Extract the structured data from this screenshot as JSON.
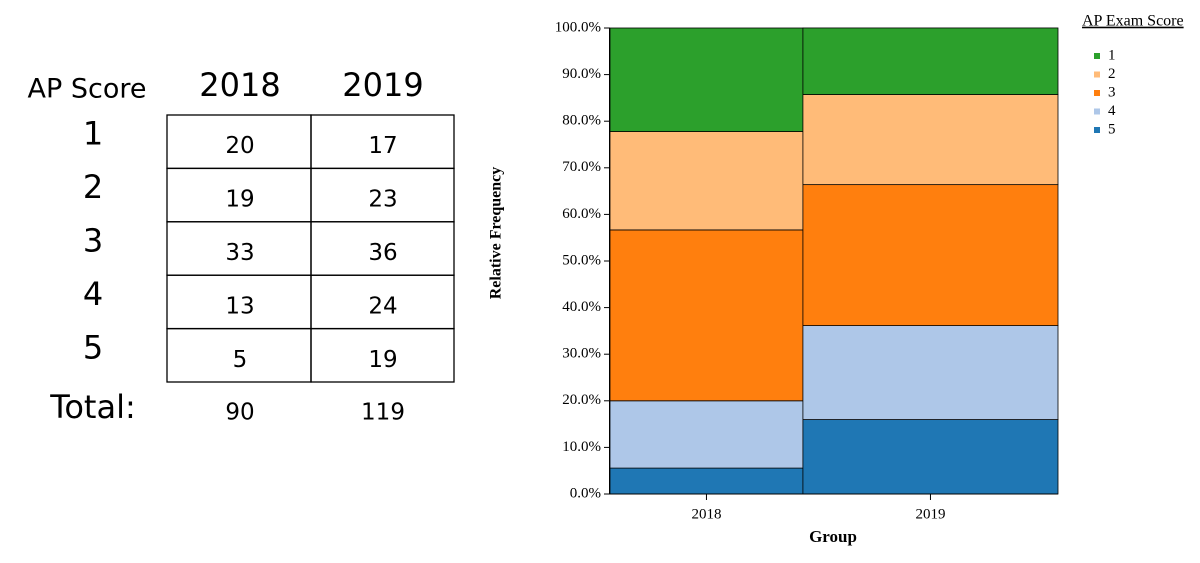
{
  "table": {
    "header": [
      "AP Score",
      "2018",
      "2019"
    ],
    "rows": [
      [
        "1",
        20,
        17
      ],
      [
        "2",
        19,
        23
      ],
      [
        "3",
        33,
        36
      ],
      [
        "4",
        13,
        24
      ],
      [
        "5",
        5,
        19
      ]
    ],
    "total": [
      "Total:",
      90,
      119
    ]
  },
  "chart_data": {
    "type": "mosaic",
    "x_label": "Group",
    "y_label": "Relative Frequency",
    "legend_title": "AP Exam Score",
    "legend": "top-right",
    "categories": [
      "2018",
      "2019"
    ],
    "series": [
      {
        "name": "1",
        "color": "#2ca02c",
        "values": [
          22.22,
          14.29
        ]
      },
      {
        "name": "2",
        "color": "#ffbb78",
        "values": [
          21.11,
          19.33
        ]
      },
      {
        "name": "3",
        "color": "#ff7f0e",
        "values": [
          36.67,
          30.25
        ]
      },
      {
        "name": "4",
        "color": "#aec7e8",
        "values": [
          14.44,
          20.17
        ]
      },
      {
        "name": "5",
        "color": "#1f77b4",
        "values": [
          5.56,
          15.97
        ]
      }
    ],
    "ylim": [
      0,
      100
    ],
    "yticks": [
      {
        "value": 0,
        "label": "0.0%"
      },
      {
        "value": 10,
        "label": "10.0%"
      },
      {
        "value": 20,
        "label": "20.0%"
      },
      {
        "value": 30,
        "label": "30.0%"
      },
      {
        "value": 40,
        "label": "40.0%"
      },
      {
        "value": 50,
        "label": "50.0%"
      },
      {
        "value": 60,
        "label": "60.0%"
      },
      {
        "value": 70,
        "label": "70.0%"
      },
      {
        "value": 80,
        "label": "80.0%"
      },
      {
        "value": 90,
        "label": "90.0%"
      },
      {
        "value": 100,
        "label": "100.0%"
      }
    ],
    "grid": false
  }
}
